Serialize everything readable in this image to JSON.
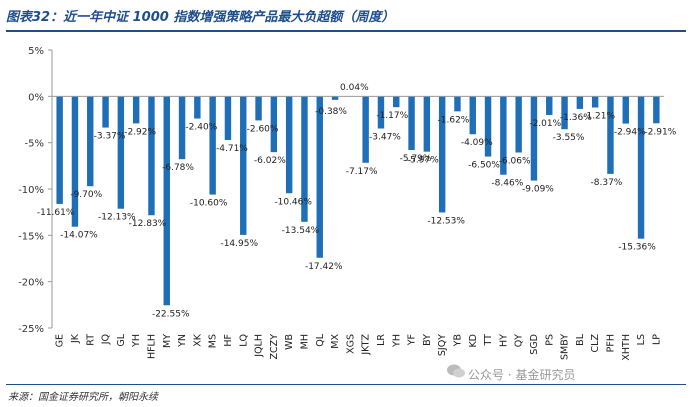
{
  "title": "图表32：近一年中证 1000 指数增强策略产品最大负超额（周度）",
  "source": "来源：国金证券研究所，朝阳永续",
  "watermark": "公众号 · 基金研究员",
  "watermark_icon": "wechat-icon",
  "colors": {
    "bar": "#1f6fb8",
    "title": "#1f4e8c",
    "axis": "#999999"
  },
  "chart_data": {
    "type": "bar",
    "title": "图表32：近一年中证 1000 指数增强策略产品最大负超额（周度）",
    "xlabel": "",
    "ylabel": "",
    "ylim": [
      -25,
      5
    ],
    "yticks": [
      5,
      0,
      -5,
      -10,
      -15,
      -20,
      -25
    ],
    "ytick_labels": [
      "5%",
      "0%",
      "-5%",
      "-10%",
      "-15%",
      "-20%",
      "-25%"
    ],
    "grid": false,
    "legend": "none",
    "categories": [
      "GE",
      "JK",
      "RT",
      "JQ",
      "GL",
      "YH",
      "HFLH",
      "MY",
      "YN",
      "XK",
      "MS",
      "HF",
      "LQ",
      "JQLH",
      "ZCZY",
      "WB",
      "MH",
      "QL",
      "MX",
      "XGS",
      "JKTZ",
      "LR",
      "YH",
      "YF",
      "BY",
      "SJQY",
      "YB",
      "KD",
      "TT",
      "HY",
      "QY",
      "SGD",
      "PS",
      "SMBY",
      "BL",
      "CLZ",
      "PFH",
      "XHTH",
      "LS",
      "LP"
    ],
    "values": [
      -11.61,
      -14.07,
      -9.7,
      -3.37,
      -12.13,
      -2.92,
      -12.83,
      -22.55,
      -6.78,
      -2.4,
      -10.6,
      -4.71,
      -14.95,
      -2.6,
      -6.02,
      -10.46,
      -13.54,
      -17.42,
      -0.38,
      0.04,
      -7.17,
      -3.47,
      -1.17,
      -5.79,
      -5.97,
      -12.53,
      -1.62,
      -4.09,
      -6.5,
      -8.46,
      -6.06,
      -9.09,
      -2.01,
      -3.55,
      -1.36,
      -1.21,
      -8.37,
      -2.94,
      -15.36,
      -2.91
    ],
    "data_labels": [
      "-11.61%",
      "-14.07%",
      "-9.70%",
      "-3.37%",
      "-12.13%",
      "-2.92%",
      "-12.83%",
      "-22.55%",
      "-6.78%",
      "-2.40%",
      "-10.60%",
      "-4.71%",
      "-14.95%",
      "-2.60%",
      "-6.02%",
      "-10.46%",
      "-13.54%",
      "-17.42%",
      "-0.38%",
      "0.04%",
      "-7.17%",
      "-3.47%",
      "-1.17%",
      "-5.79%",
      "-5.97%",
      "-12.53%",
      "-1.62%",
      "-4.09%",
      "-6.50%",
      "-8.46%",
      "-6.06%",
      "-9.09%",
      "-2.01%",
      "-3.55%",
      "-1.36%",
      "-1.21%",
      "-8.37%",
      "-2.94%",
      "-15.36%",
      "-2.91%"
    ]
  }
}
